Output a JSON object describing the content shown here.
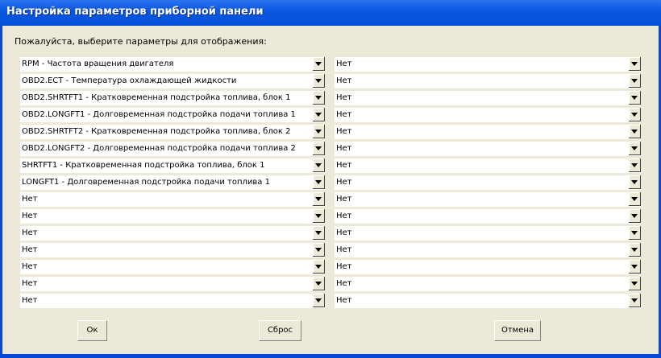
{
  "title": "Настройка параметров приборной панели",
  "prompt": "Пожалуйста, выберите параметры для отображения:",
  "left": [
    "RPM - Частота вращения двигателя",
    "OBD2.ECT - Температура охлаждающей жидкости",
    "OBD2.SHRTFT1 - Кратковременная подстройка топлива, блок 1",
    "OBD2.LONGFT1 - Долговременная подстройка подачи топлива 1",
    "OBD2.SHRTFT2 - Кратковременная подстройка топлива, блок 2",
    "OBD2.LONGFT2 - Долговременная подстройка подачи топлива 2",
    "SHRTFT1 - Кратковременная подстройка топлива, блок 1",
    "LONGFT1 - Долговременная подстройка подачи топлива 1",
    "Нет",
    "Нет",
    "Нет",
    "Нет",
    "Нет",
    "Нет",
    "Нет"
  ],
  "right": [
    "Нет",
    "Нет",
    "Нет",
    "Нет",
    "Нет",
    "Нет",
    "Нет",
    "Нет",
    "Нет",
    "Нет",
    "Нет",
    "Нет",
    "Нет",
    "Нет",
    "Нет"
  ],
  "buttons": {
    "ok": "Ок",
    "reset": "Сброс",
    "cancel": "Отмена"
  }
}
